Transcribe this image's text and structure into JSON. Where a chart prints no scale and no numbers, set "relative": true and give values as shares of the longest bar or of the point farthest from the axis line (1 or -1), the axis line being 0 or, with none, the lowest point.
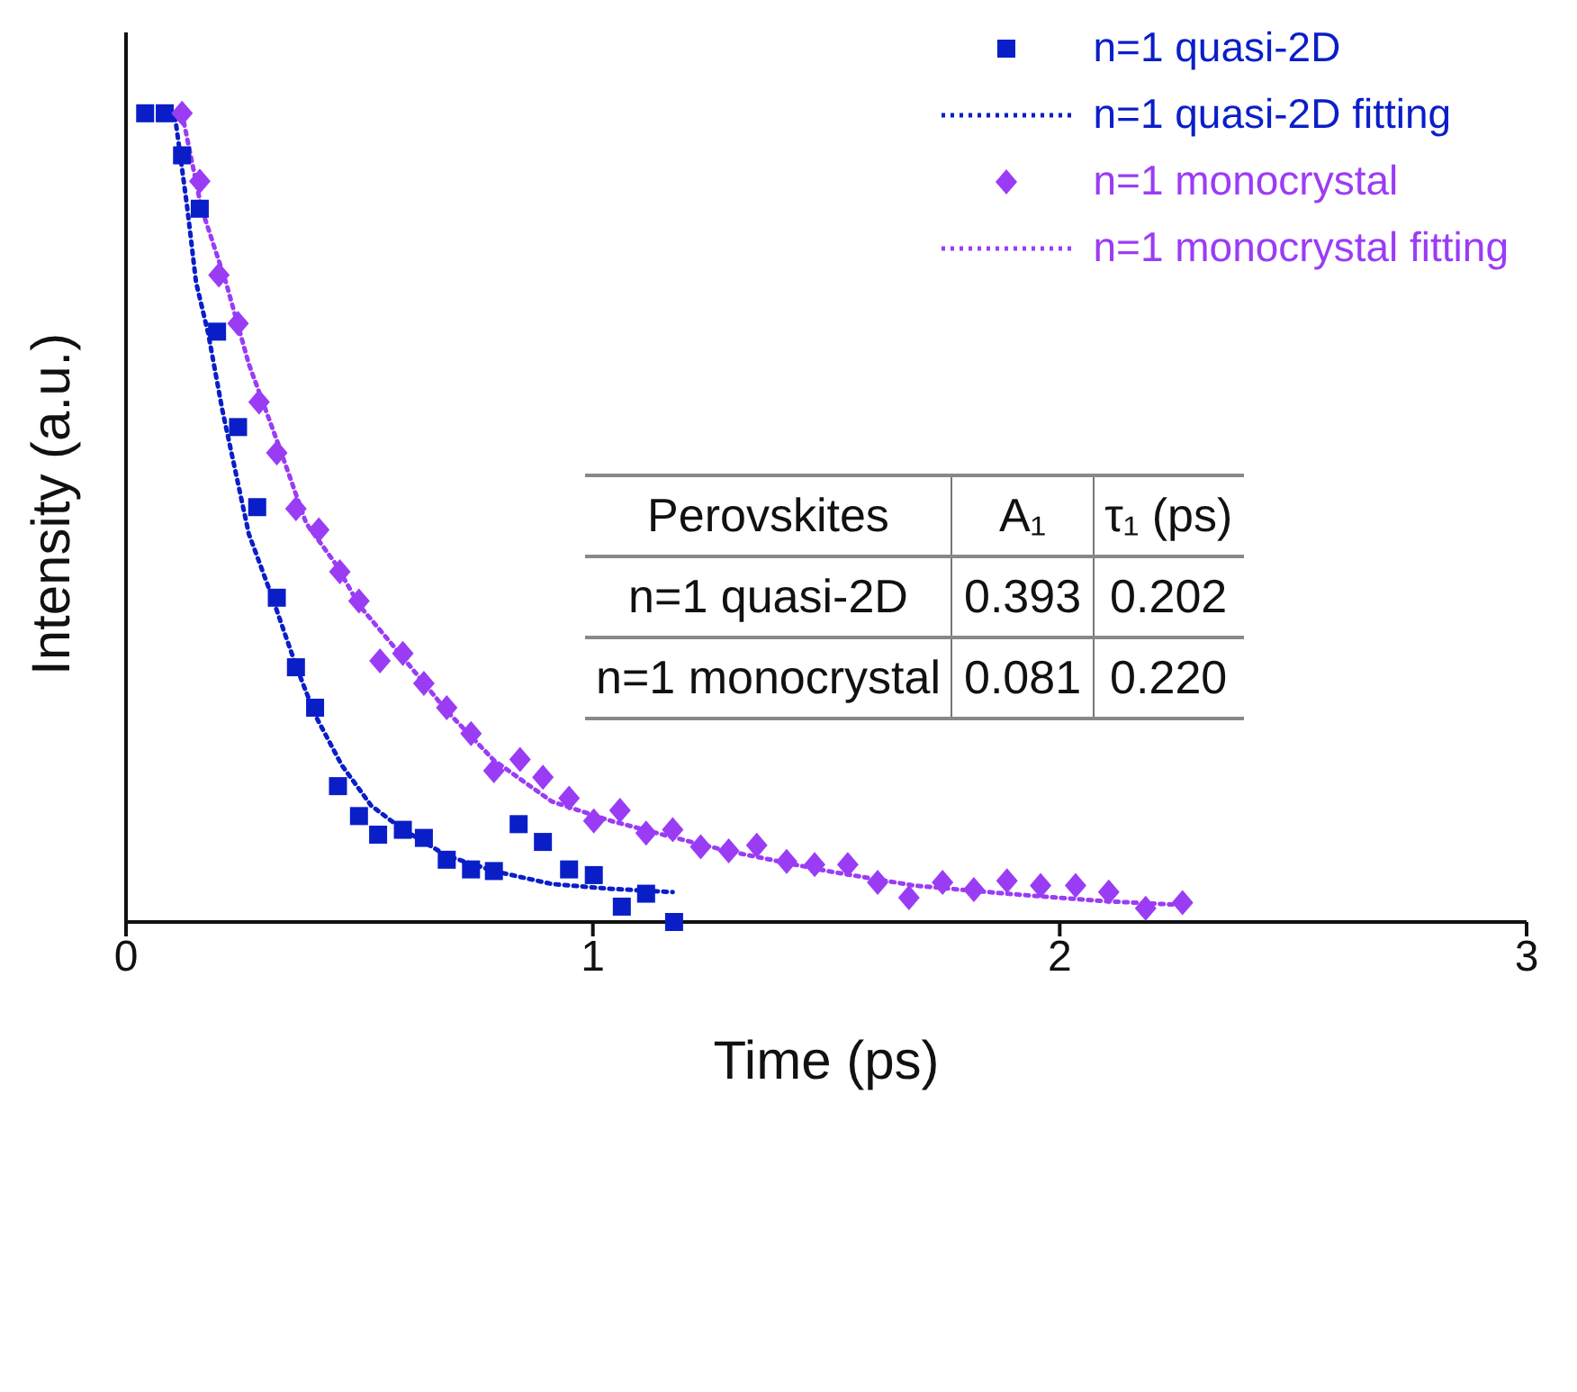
{
  "chart_data": {
    "type": "scatter",
    "xlabel": "Time (ps)",
    "ylabel": "Intensity (a.u.)",
    "relative": true,
    "xlim": [
      0,
      3
    ],
    "xticks": [
      0,
      1,
      2,
      3
    ],
    "legend": "top right",
    "grid": false,
    "series": [
      {
        "name": "n=1 quasi-2D",
        "marker": "square",
        "color": "#0a1ec8",
        "x": [
          0.041,
          0.083,
          0.12,
          0.158,
          0.195,
          0.24,
          0.281,
          0.323,
          0.364,
          0.405,
          0.454,
          0.499,
          0.54,
          0.593,
          0.638,
          0.687,
          0.739,
          0.788,
          0.841,
          0.893,
          0.949,
          1.002,
          1.062,
          1.114,
          1.174
        ],
        "values": [
          1.0,
          1.0,
          0.948,
          0.882,
          0.73,
          0.612,
          0.513,
          0.401,
          0.315,
          0.265,
          0.168,
          0.131,
          0.108,
          0.114,
          0.104,
          0.077,
          0.065,
          0.063,
          0.121,
          0.099,
          0.065,
          0.058,
          0.019,
          0.035,
          0.0
        ]
      },
      {
        "name": "n=1 quasi-2D fitting",
        "type": "line",
        "marker": "none",
        "line_style": "dotted",
        "color": "#0a1ec8",
        "x": [
          0.105,
          0.131,
          0.15,
          0.176,
          0.206,
          0.263,
          0.311,
          0.364,
          0.405,
          0.462,
          0.525,
          0.589,
          0.687,
          0.788,
          0.912,
          1.039,
          1.171
        ],
        "values": [
          0.996,
          0.884,
          0.791,
          0.728,
          0.634,
          0.48,
          0.405,
          0.317,
          0.256,
          0.194,
          0.144,
          0.116,
          0.082,
          0.063,
          0.047,
          0.041,
          0.037
        ]
      },
      {
        "name": "n=1 monocrystal",
        "marker": "diamond",
        "color": "#9b3cf5",
        "x": [
          0.12,
          0.158,
          0.199,
          0.24,
          0.285,
          0.323,
          0.364,
          0.413,
          0.458,
          0.499,
          0.544,
          0.593,
          0.638,
          0.687,
          0.739,
          0.788,
          0.844,
          0.893,
          0.949,
          1.002,
          1.058,
          1.114,
          1.171,
          1.231,
          1.291,
          1.351,
          1.415,
          1.475,
          1.546,
          1.61,
          1.677,
          1.749,
          1.816,
          1.887,
          1.959,
          2.034,
          2.105,
          2.184,
          2.263
        ],
        "values": [
          1.0,
          0.916,
          0.8,
          0.74,
          0.643,
          0.58,
          0.511,
          0.485,
          0.433,
          0.397,
          0.323,
          0.332,
          0.295,
          0.265,
          0.233,
          0.187,
          0.201,
          0.179,
          0.153,
          0.125,
          0.138,
          0.11,
          0.114,
          0.093,
          0.088,
          0.095,
          0.075,
          0.071,
          0.071,
          0.049,
          0.03,
          0.049,
          0.04,
          0.051,
          0.045,
          0.045,
          0.037,
          0.017,
          0.024
        ]
      },
      {
        "name": "n=1 monocrystal fitting",
        "type": "line",
        "marker": "none",
        "line_style": "dotted",
        "color": "#9b3cf5",
        "x": [
          0.12,
          0.161,
          0.214,
          0.263,
          0.326,
          0.386,
          0.45,
          0.499,
          0.589,
          0.687,
          0.788,
          0.912,
          1.039,
          1.163,
          1.287,
          1.415,
          1.512,
          1.689,
          1.887,
          2.09,
          2.263
        ],
        "values": [
          1.0,
          0.884,
          0.791,
          0.69,
          0.591,
          0.493,
          0.442,
          0.392,
          0.33,
          0.261,
          0.2,
          0.149,
          0.125,
          0.106,
          0.088,
          0.073,
          0.062,
          0.045,
          0.035,
          0.026,
          0.021
        ]
      }
    ],
    "annotations": [
      "Perovskites",
      "A₁",
      "τ₁ (ps)",
      "n=1 quasi-2D",
      "0.393",
      "0.202",
      "n=1 monocrystal",
      "0.081",
      "0.220"
    ]
  }
}
